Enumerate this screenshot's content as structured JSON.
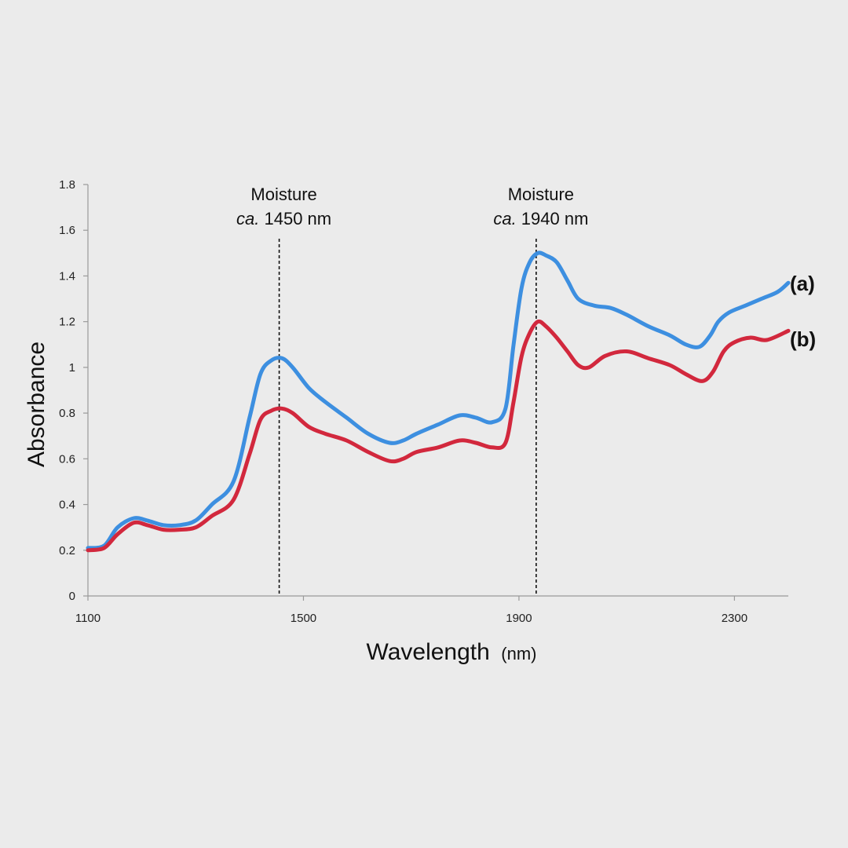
{
  "chart_data": {
    "type": "line",
    "title": "",
    "xlabel": "Wavelength",
    "xlabel_unit": "(nm)",
    "ylabel": "Absorbance",
    "xlim": [
      1100,
      2400
    ],
    "ylim": [
      0,
      1.8
    ],
    "x_ticks": [
      "1100",
      "1500",
      "1900",
      "2300"
    ],
    "y_ticks": [
      "0",
      "0.2",
      "0.4",
      "0.6",
      "0.8",
      "1",
      "1.2",
      "1.4",
      "1.6",
      "1.8"
    ],
    "grid": false,
    "legend": "none",
    "annotations": [
      {
        "x": 1455,
        "line1": "Moisture",
        "prefix": "ca.",
        "suffix": " 1450 nm"
      },
      {
        "x": 1932,
        "line1": "Moisture",
        "prefix": "ca.",
        "suffix": " 1940 nm"
      }
    ],
    "series": [
      {
        "name": "(a)",
        "color": "#3d8fe0",
        "points": [
          [
            1100,
            0.21
          ],
          [
            1130,
            0.22
          ],
          [
            1155,
            0.3
          ],
          [
            1185,
            0.34
          ],
          [
            1210,
            0.33
          ],
          [
            1240,
            0.31
          ],
          [
            1270,
            0.31
          ],
          [
            1300,
            0.33
          ],
          [
            1330,
            0.4
          ],
          [
            1370,
            0.5
          ],
          [
            1400,
            0.78
          ],
          [
            1420,
            0.97
          ],
          [
            1440,
            1.03
          ],
          [
            1460,
            1.04
          ],
          [
            1480,
            1.0
          ],
          [
            1510,
            0.91
          ],
          [
            1540,
            0.85
          ],
          [
            1580,
            0.78
          ],
          [
            1620,
            0.71
          ],
          [
            1660,
            0.67
          ],
          [
            1685,
            0.68
          ],
          [
            1710,
            0.71
          ],
          [
            1750,
            0.75
          ],
          [
            1790,
            0.79
          ],
          [
            1820,
            0.78
          ],
          [
            1850,
            0.76
          ],
          [
            1875,
            0.82
          ],
          [
            1890,
            1.1
          ],
          [
            1905,
            1.35
          ],
          [
            1920,
            1.46
          ],
          [
            1935,
            1.5
          ],
          [
            1950,
            1.49
          ],
          [
            1970,
            1.46
          ],
          [
            1990,
            1.38
          ],
          [
            2010,
            1.3
          ],
          [
            2040,
            1.27
          ],
          [
            2070,
            1.26
          ],
          [
            2100,
            1.23
          ],
          [
            2140,
            1.18
          ],
          [
            2180,
            1.14
          ],
          [
            2210,
            1.1
          ],
          [
            2235,
            1.09
          ],
          [
            2255,
            1.14
          ],
          [
            2270,
            1.2
          ],
          [
            2290,
            1.24
          ],
          [
            2320,
            1.27
          ],
          [
            2350,
            1.3
          ],
          [
            2380,
            1.33
          ],
          [
            2400,
            1.37
          ]
        ]
      },
      {
        "name": "(b)",
        "color": "#d2283d",
        "points": [
          [
            1100,
            0.2
          ],
          [
            1130,
            0.21
          ],
          [
            1155,
            0.27
          ],
          [
            1185,
            0.32
          ],
          [
            1210,
            0.31
          ],
          [
            1240,
            0.29
          ],
          [
            1270,
            0.29
          ],
          [
            1300,
            0.3
          ],
          [
            1330,
            0.35
          ],
          [
            1370,
            0.42
          ],
          [
            1400,
            0.62
          ],
          [
            1420,
            0.77
          ],
          [
            1440,
            0.81
          ],
          [
            1460,
            0.82
          ],
          [
            1480,
            0.8
          ],
          [
            1510,
            0.74
          ],
          [
            1540,
            0.71
          ],
          [
            1580,
            0.68
          ],
          [
            1620,
            0.63
          ],
          [
            1660,
            0.59
          ],
          [
            1685,
            0.6
          ],
          [
            1710,
            0.63
          ],
          [
            1750,
            0.65
          ],
          [
            1790,
            0.68
          ],
          [
            1820,
            0.67
          ],
          [
            1850,
            0.65
          ],
          [
            1875,
            0.67
          ],
          [
            1890,
            0.85
          ],
          [
            1905,
            1.05
          ],
          [
            1920,
            1.15
          ],
          [
            1935,
            1.2
          ],
          [
            1950,
            1.18
          ],
          [
            1970,
            1.13
          ],
          [
            1990,
            1.07
          ],
          [
            2010,
            1.01
          ],
          [
            2030,
            1.0
          ],
          [
            2060,
            1.05
          ],
          [
            2100,
            1.07
          ],
          [
            2140,
            1.04
          ],
          [
            2180,
            1.01
          ],
          [
            2210,
            0.97
          ],
          [
            2240,
            0.94
          ],
          [
            2260,
            0.98
          ],
          [
            2280,
            1.07
          ],
          [
            2300,
            1.11
          ],
          [
            2330,
            1.13
          ],
          [
            2360,
            1.12
          ],
          [
            2400,
            1.16
          ]
        ]
      }
    ]
  }
}
